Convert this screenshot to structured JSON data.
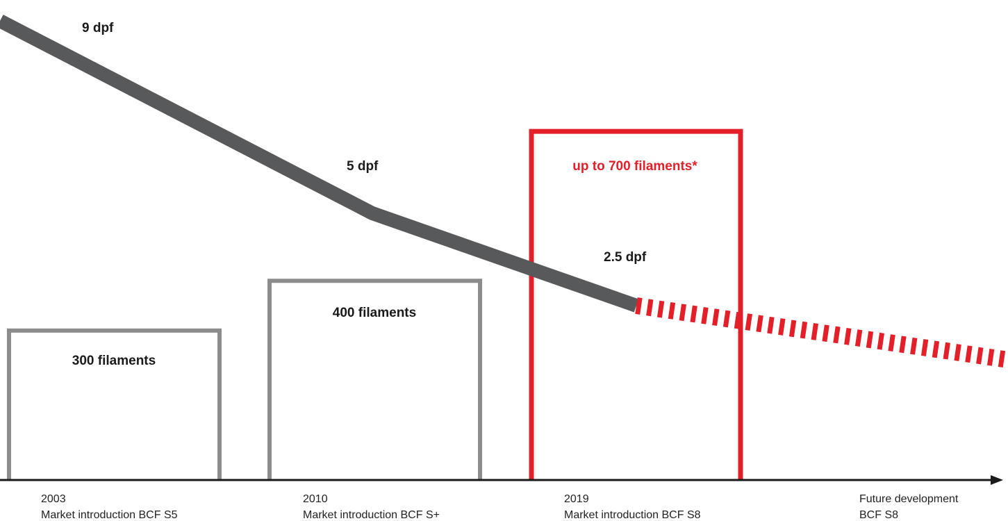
{
  "colors": {
    "trend": "#58595b",
    "past_box": "#8c8c8c",
    "current_box": "#e3202a",
    "future_dash": "#e3202a",
    "axis": "#1a1a1a",
    "text": "#1a1a1a"
  },
  "chart_data": {
    "type": "line",
    "title": "",
    "xlabel": "",
    "ylabel": "",
    "grid": false,
    "milestones": [
      {
        "year": "2003",
        "caption": "Market introduction BCF S5",
        "filaments": 300,
        "filaments_label": "300 filaments",
        "dpf": 9,
        "dpf_label": "9 dpf",
        "style": "past"
      },
      {
        "year": "2010",
        "caption": "Market introduction BCF S+",
        "filaments": 400,
        "filaments_label": "400 filaments",
        "dpf": 5,
        "dpf_label": "5 dpf",
        "style": "past"
      },
      {
        "year": "2019",
        "caption": "Market introduction BCF S8",
        "filaments": 700,
        "filaments_label": "up to 700 filaments*",
        "dpf": 2.5,
        "dpf_label": "2.5 dpf",
        "style": "current"
      },
      {
        "year": "Future development",
        "caption": "BCF S8",
        "style": "future"
      }
    ]
  }
}
